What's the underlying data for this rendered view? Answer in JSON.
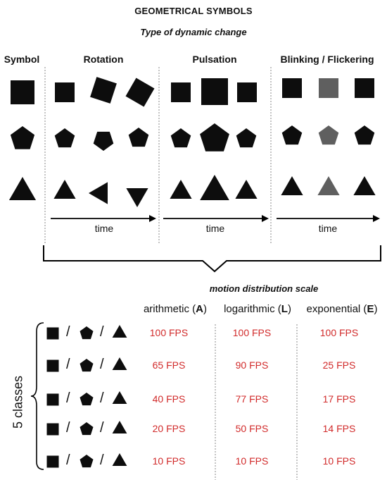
{
  "title": "GEOMETRICAL SYMBOLS",
  "subtitle": "Type of dynamic change",
  "columns": {
    "symbol": "Symbol",
    "rotation": "Rotation",
    "pulsation": "Pulsation",
    "blinking": "Blinking / Flickering"
  },
  "time_label": "time",
  "scale_title": "motion distribution scale",
  "methods": [
    {
      "name": "arithmetic",
      "letter": "A"
    },
    {
      "name": "logarithmic",
      "letter": "L"
    },
    {
      "name": "exponential",
      "letter": "E"
    }
  ],
  "separator": "/",
  "classes_label": "5 classes",
  "fps_rows": [
    [
      "100 FPS",
      "100 FPS",
      "100 FPS"
    ],
    [
      "65 FPS",
      "90 FPS",
      "25 FPS"
    ],
    [
      "40 FPS",
      "77 FPS",
      "17 FPS"
    ],
    [
      "20 FPS",
      "50 FPS",
      "14 FPS"
    ],
    [
      "10 FPS",
      "10 FPS",
      "10 FPS"
    ]
  ],
  "colors": {
    "symbol": "#0d0d0d",
    "dimmed": "#5f5f5f",
    "fps": "#d12a2a",
    "divider": "#8a8a8a"
  },
  "icons": [
    "square-icon",
    "pentagon-icon",
    "triangle-icon",
    "arrow-right-icon",
    "curly-brace-icon"
  ]
}
